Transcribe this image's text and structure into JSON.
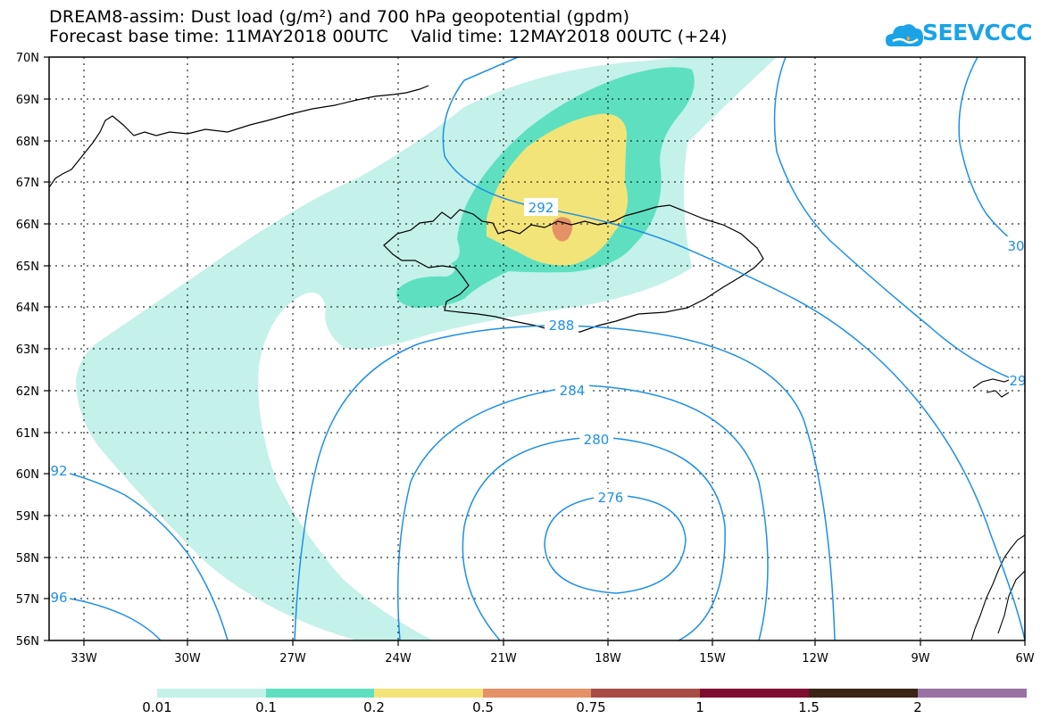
{
  "header": {
    "title_line1": "DREAM8-assim: Dust load (g/m²) and 700 hPa geopotential (gpdm)",
    "title_line2": "Forecast base time: 11MAY2018 00UTC    Valid time: 12MAY2018 00UTC (+24)",
    "logo_text": "SEEVCCC"
  },
  "map": {
    "lat_labels": [
      "70N",
      "69N",
      "68N",
      "67N",
      "66N",
      "65N",
      "64N",
      "63N",
      "62N",
      "61N",
      "60N",
      "59N",
      "58N",
      "57N",
      "56N"
    ],
    "lon_labels": [
      "33W",
      "30W",
      "27W",
      "24W",
      "21W",
      "18W",
      "15W",
      "12W",
      "9W",
      "6W"
    ],
    "contour_labels": [
      "292",
      "288",
      "284",
      "280",
      "276",
      "92",
      "96",
      "30",
      "29"
    ],
    "colors": {
      "dust_0_01": "#c4f1ea",
      "dust_0_1": "#5ee0c0",
      "dust_0_2": "#f3e47a",
      "dust_0_5": "#e49167",
      "contour": "#1e8fe6"
    }
  },
  "colorbar": {
    "labels": [
      "0.01",
      "0.1",
      "0.2",
      "0.5",
      "0.75",
      "1",
      "1.5",
      "2"
    ],
    "colors": [
      "#c4f1ea",
      "#5ee0c0",
      "#f3e47a",
      "#e49167",
      "#a84d45",
      "#7f0d31",
      "#3b2316",
      "#9a72a4"
    ]
  }
}
